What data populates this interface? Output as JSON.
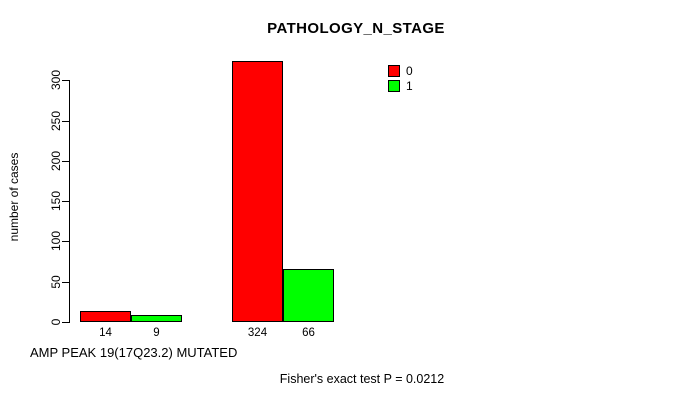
{
  "chart_data": {
    "type": "bar",
    "title": "PATHOLOGY_N_STAGE",
    "ylabel": "number of cases",
    "xlabel": "AMP PEAK 19(17Q23.2) MUTATED",
    "annotation": "Fisher's exact test P = 0.0212",
    "y_ticks": [
      0,
      50,
      100,
      150,
      200,
      250,
      300
    ],
    "ylim": [
      0,
      324
    ],
    "grid": false,
    "legend_position": "top-right",
    "legend": [
      {
        "label": "0",
        "color": "#ff0000"
      },
      {
        "label": "1",
        "color": "#00ff00"
      }
    ],
    "groups": [
      {
        "bars": [
          {
            "series": "0",
            "value": 14,
            "label": "14",
            "color": "#ff0000"
          },
          {
            "series": "1",
            "value": 9,
            "label": "9",
            "color": "#00ff00"
          }
        ]
      },
      {
        "bars": [
          {
            "series": "0",
            "value": 324,
            "label": "324",
            "color": "#ff0000"
          },
          {
            "series": "1",
            "value": 66,
            "label": "66",
            "color": "#00ff00"
          }
        ]
      }
    ],
    "colors": {
      "series_0": "#ff0000",
      "series_1": "#00ff00",
      "axis": "#000000",
      "background": "#ffffff"
    }
  }
}
